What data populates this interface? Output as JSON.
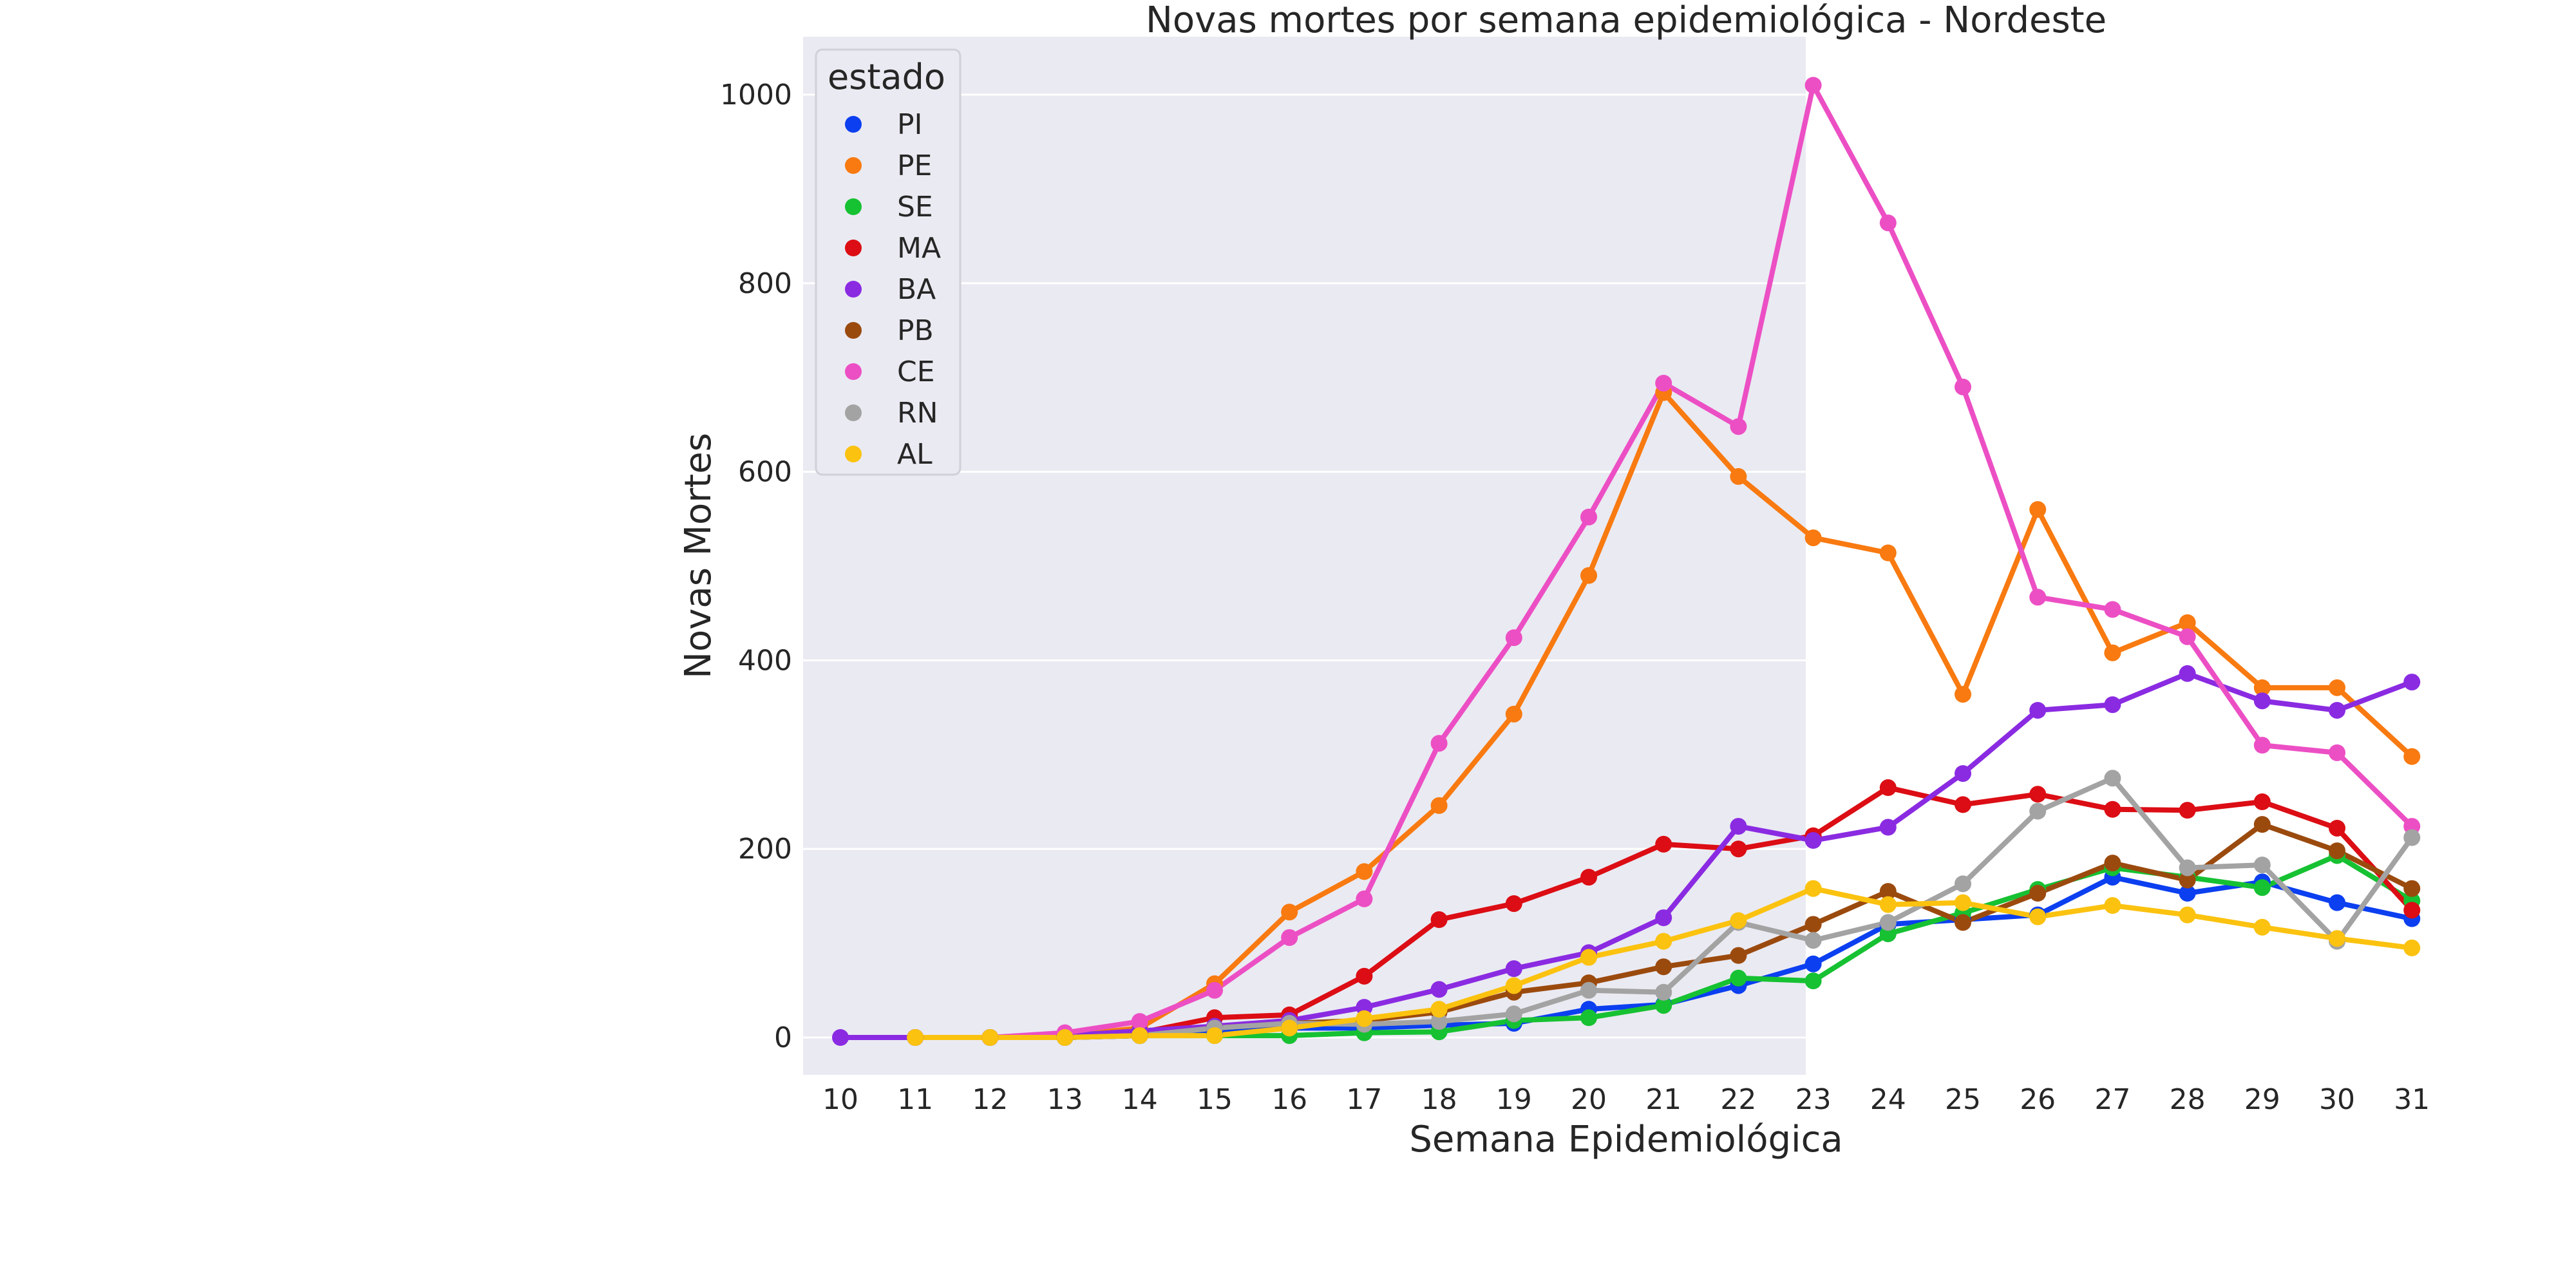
{
  "chart_data": {
    "type": "line",
    "title": "Novas mortes por semana epidemiológica - Nordeste",
    "xlabel": "Semana Epidemiológica",
    "ylabel": "Novas Mortes",
    "x": [
      10,
      11,
      12,
      13,
      14,
      15,
      16,
      17,
      18,
      19,
      20,
      21,
      22,
      23,
      24,
      25,
      26,
      27,
      28,
      29,
      30,
      31
    ],
    "ylim": [
      -50,
      1050
    ],
    "yticks": [
      0,
      200,
      400,
      600,
      800,
      1000
    ],
    "grid": true,
    "legend_title": "estado",
    "legend_position": "top-left",
    "series": [
      {
        "name": "PI",
        "color": "#0b3ff0",
        "x": [
          11,
          12,
          13,
          14,
          15,
          16,
          17,
          18,
          19,
          20,
          21,
          22,
          23,
          24,
          25,
          26,
          27,
          28,
          29,
          30,
          31
        ],
        "values": [
          0,
          0,
          0,
          2,
          5,
          10,
          10,
          13,
          15,
          30,
          35,
          55,
          78,
          120,
          125,
          130,
          170,
          153,
          165,
          143,
          126
        ]
      },
      {
        "name": "PE",
        "color": "#f87a10",
        "x": [
          11,
          12,
          13,
          14,
          15,
          16,
          17,
          18,
          19,
          20,
          21,
          22,
          23,
          24,
          25,
          26,
          27,
          28,
          29,
          30,
          31
        ],
        "values": [
          0,
          0,
          2,
          10,
          57,
          133,
          176,
          246,
          343,
          490,
          684,
          595,
          530,
          514,
          364,
          560,
          408,
          440,
          371,
          371,
          298
        ]
      },
      {
        "name": "SE",
        "color": "#16c132",
        "x": [
          11,
          12,
          13,
          14,
          15,
          16,
          17,
          18,
          19,
          20,
          21,
          22,
          23,
          24,
          25,
          26,
          27,
          28,
          29,
          30,
          31
        ],
        "values": [
          0,
          0,
          0,
          2,
          2,
          2,
          5,
          6,
          18,
          21,
          34,
          63,
          60,
          110,
          132,
          157,
          180,
          170,
          159,
          193,
          145
        ]
      },
      {
        "name": "MA",
        "color": "#dc0d14",
        "x": [
          11,
          12,
          13,
          14,
          15,
          16,
          17,
          18,
          19,
          20,
          21,
          22,
          23,
          24,
          25,
          26,
          27,
          28,
          29,
          30,
          31
        ],
        "values": [
          0,
          0,
          2,
          5,
          21,
          24,
          65,
          125,
          142,
          170,
          205,
          200,
          214,
          265,
          247,
          258,
          242,
          241,
          250,
          222,
          135
        ]
      },
      {
        "name": "BA",
        "color": "#8a2be2",
        "x": [
          10,
          11,
          12,
          13,
          14,
          15,
          16,
          17,
          18,
          19,
          20,
          21,
          22,
          23,
          24,
          25,
          26,
          27,
          28,
          29,
          30,
          31
        ],
        "values": [
          0,
          0,
          0,
          2,
          7,
          12,
          18,
          32,
          51,
          73,
          90,
          127,
          224,
          209,
          223,
          280,
          347,
          353,
          386,
          357,
          347,
          377
        ]
      },
      {
        "name": "PB",
        "color": "#9b4a0e",
        "x": [
          11,
          12,
          13,
          14,
          15,
          16,
          17,
          18,
          19,
          20,
          21,
          22,
          23,
          24,
          25,
          26,
          27,
          28,
          29,
          30,
          31
        ],
        "values": [
          0,
          0,
          0,
          2,
          10,
          15,
          18,
          27,
          48,
          58,
          75,
          87,
          120,
          155,
          122,
          153,
          185,
          167,
          226,
          198,
          158
        ]
      },
      {
        "name": "CE",
        "color": "#ec4fc4",
        "x": [
          11,
          12,
          13,
          14,
          15,
          16,
          17,
          18,
          19,
          20,
          21,
          22,
          23,
          24,
          25,
          26,
          27,
          28,
          29,
          30,
          31
        ],
        "values": [
          0,
          0,
          5,
          17,
          50,
          106,
          147,
          312,
          424,
          552,
          694,
          648,
          1010,
          864,
          690,
          467,
          454,
          425,
          310,
          302,
          224
        ]
      },
      {
        "name": "RN",
        "color": "#a3a3a3",
        "x": [
          11,
          12,
          13,
          14,
          15,
          16,
          17,
          18,
          19,
          20,
          21,
          22,
          23,
          24,
          25,
          26,
          27,
          28,
          29,
          30,
          31
        ],
        "values": [
          0,
          0,
          0,
          2,
          10,
          15,
          14,
          17,
          25,
          50,
          48,
          122,
          103,
          122,
          163,
          240,
          275,
          180,
          183,
          102,
          212
        ]
      },
      {
        "name": "AL",
        "color": "#fbc20f",
        "x": [
          11,
          12,
          13,
          14,
          15,
          16,
          17,
          18,
          19,
          20,
          21,
          22,
          23,
          24,
          25,
          26,
          27,
          28,
          29,
          30,
          31
        ],
        "values": [
          0,
          0,
          0,
          2,
          2,
          10,
          20,
          30,
          55,
          85,
          102,
          124,
          158,
          141,
          143,
          128,
          140,
          130,
          117,
          105,
          95
        ]
      }
    ]
  }
}
